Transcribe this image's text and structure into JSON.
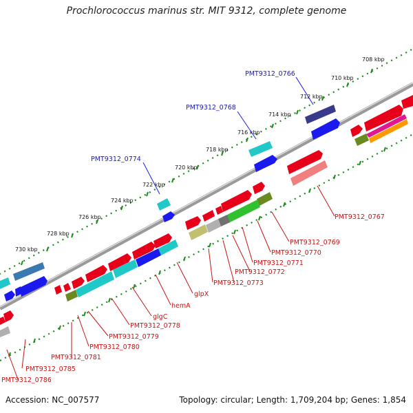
{
  "title": "Prochlorococcus marinus str. MIT 9312, complete genome",
  "footer": {
    "accession": "Accession: NC_007577",
    "summary": "Topology: circular; Length: 1,709,204 bp; Genes: 1,854"
  },
  "ticks": [
    "708 kbp",
    "710 kbp",
    "712 kbp",
    "714 kbp",
    "716 kbp",
    "718 kbp",
    "720 kbp",
    "722 kbp",
    "724 kbp",
    "726 kbp",
    "728 kbp",
    "730 kbp"
  ],
  "outer_labels": [
    "PMT9312_0766",
    "PMT9312_0768",
    "PMT9312_0774"
  ],
  "inner_labels": [
    "PMT9312_0767",
    "PMT9312_0769",
    "PMT9312_0770",
    "PMT9312_0771",
    "PMT9312_0772",
    "PMT9312_0773",
    "glpX",
    "hemA",
    "glgC",
    "PMT9312_0778",
    "PMT9312_0779",
    "PMT9312_0780",
    "PMT9312_0781",
    "PMT9312_0785",
    "PMT9312_0786"
  ],
  "colors": {
    "red": "#e8001a",
    "light_red": "#f08080",
    "cyan": "#20c8c8",
    "blue": "#1a1aee",
    "navy": "#3a3a8a",
    "green": "#30c030",
    "olive": "#6a8a20",
    "khaki": "#c0c070",
    "gray": "#b0b0b0",
    "slate": "#707070",
    "magenta": "#e01890",
    "orange": "#ff9900",
    "tick_green": "#1a8a1a",
    "backbone": "#808080"
  }
}
